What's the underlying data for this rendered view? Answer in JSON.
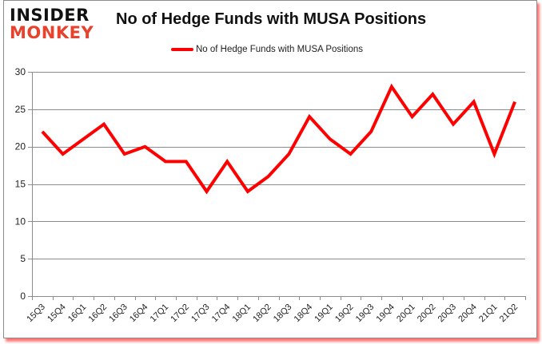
{
  "brand": {
    "line1": "INSIDER",
    "line2": "MONKEY"
  },
  "title": "No of Hedge Funds with MUSA Positions",
  "legend": {
    "label": "No of Hedge Funds with MUSA Positions",
    "color": "#ff0000"
  },
  "colors": {
    "line": "#ff0000",
    "grid": "#8c8c8c",
    "brand_red": "#e8412c",
    "frame_shadow": "#ff0000"
  },
  "chart_data": {
    "type": "line",
    "title": "No of Hedge Funds with MUSA Positions",
    "xlabel": "",
    "ylabel": "",
    "ylim": [
      0,
      30
    ],
    "yticks": [
      0,
      5,
      10,
      15,
      20,
      25,
      30
    ],
    "grid": true,
    "legend_position": "top",
    "categories": [
      "15Q3",
      "15Q4",
      "16Q1",
      "16Q2",
      "16Q3",
      "16Q4",
      "17Q1",
      "17Q2",
      "17Q3",
      "17Q4",
      "18Q1",
      "18Q2",
      "18Q3",
      "18Q4",
      "19Q1",
      "19Q2",
      "19Q3",
      "19Q4",
      "20Q1",
      "20Q2",
      "20Q3",
      "20Q4",
      "21Q1",
      "21Q2"
    ],
    "series": [
      {
        "name": "No of Hedge Funds with MUSA Positions",
        "color": "#ff0000",
        "values": [
          22,
          19,
          21,
          23,
          19,
          20,
          18,
          18,
          14,
          18,
          14,
          16,
          19,
          24,
          21,
          19,
          22,
          28,
          24,
          27,
          23,
          26,
          19,
          26
        ]
      }
    ]
  }
}
